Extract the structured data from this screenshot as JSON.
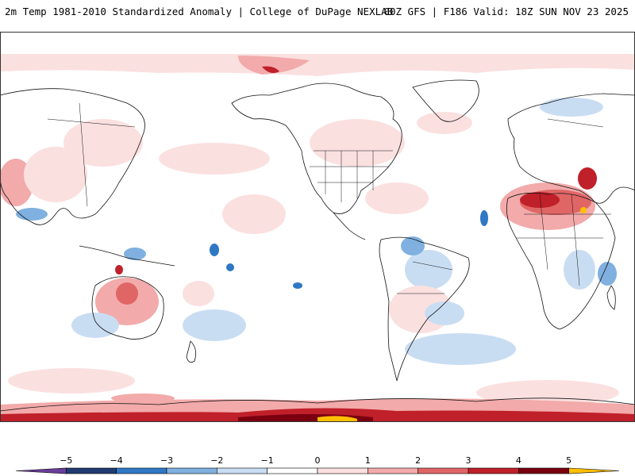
{
  "header": {
    "title_left": "2m Temp 1981-2010 Standardized Anomaly | College of DuPage NEXLAB",
    "title_right": "00Z GFS | F186 Valid: 18Z SUN NOV 23 2025"
  },
  "colorbar": {
    "ticks": [
      "−5",
      "−4",
      "−3",
      "−2",
      "−1",
      "0",
      "1",
      "2",
      "3",
      "4",
      "5"
    ],
    "colors": [
      "#6a3d9a",
      "#1f3b70",
      "#2f78c4",
      "#7fb0e0",
      "#c9ddf2",
      "#ffffff",
      "#fbe0e0",
      "#f3aaaa",
      "#e06666",
      "#c0202a",
      "#7a0010",
      "#ffc000"
    ]
  },
  "map": {
    "features": [
      "continent-outlines",
      "country-borders",
      "us-state-borders",
      "anomaly-shading"
    ]
  }
}
